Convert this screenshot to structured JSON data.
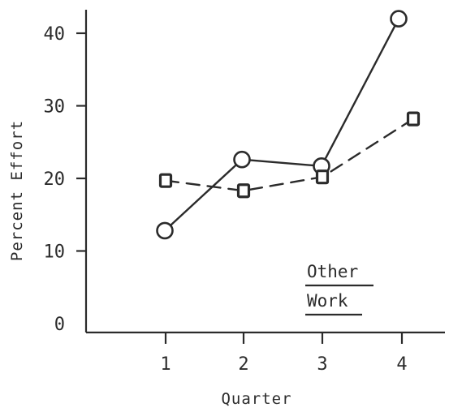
{
  "chart_data": {
    "type": "line",
    "xlabel": "Quarter",
    "ylabel": "Percent Effort",
    "x_ticks": [
      "1",
      "2",
      "3",
      "4"
    ],
    "y_ticks": [
      "0",
      "10",
      "20",
      "30",
      "40"
    ],
    "ylim": [
      0,
      40
    ],
    "xlim": [
      1,
      4
    ],
    "grid": false,
    "series": [
      {
        "name": "Other",
        "marker": "circle",
        "line_style": "solid",
        "color": "#2b2b2b",
        "x": [
          1,
          2,
          3,
          4
        ],
        "y": [
          12.8,
          22.6,
          21.7,
          42
        ]
      },
      {
        "name": "Work",
        "marker": "square",
        "line_style": "dashed",
        "color": "#2b2b2b",
        "x": [
          1,
          2,
          3,
          4
        ],
        "y": [
          19.7,
          18.3,
          20.2,
          28.2
        ]
      }
    ],
    "legend_position": "bottom-right"
  }
}
